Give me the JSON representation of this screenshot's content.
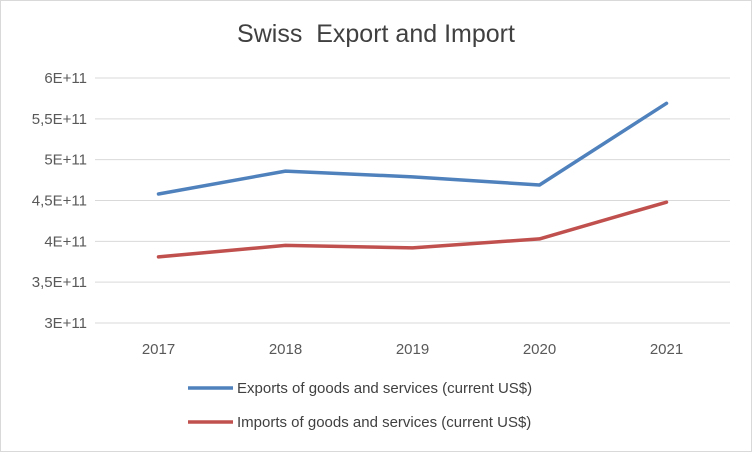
{
  "chart_data": {
    "type": "line",
    "title": "Swiss  Export and Import",
    "xlabel": "",
    "ylabel": "",
    "categories": [
      "2017",
      "2018",
      "2019",
      "2020",
      "2021"
    ],
    "ylim": [
      300000000000,
      600000000000
    ],
    "yticks": [
      {
        "value": 300000000000,
        "label": "3E+11"
      },
      {
        "value": 350000000000,
        "label": "3,5E+11"
      },
      {
        "value": 400000000000,
        "label": "4E+11"
      },
      {
        "value": 450000000000,
        "label": "4,5E+11"
      },
      {
        "value": 500000000000,
        "label": "5E+11"
      },
      {
        "value": 550000000000,
        "label": "5,5E+11"
      },
      {
        "value": 600000000000,
        "label": "6E+11"
      }
    ],
    "grid": "horizontal",
    "legend_position": "bottom",
    "series": [
      {
        "name": "Exports of goods and services (current US$)",
        "color": "#4f81bd",
        "values": [
          458000000000,
          486000000000,
          479000000000,
          469000000000,
          569000000000
        ]
      },
      {
        "name": "Imports of goods and services (current US$)",
        "color": "#c0504d",
        "values": [
          381000000000,
          395000000000,
          392000000000,
          403000000000,
          448000000000
        ]
      }
    ]
  }
}
